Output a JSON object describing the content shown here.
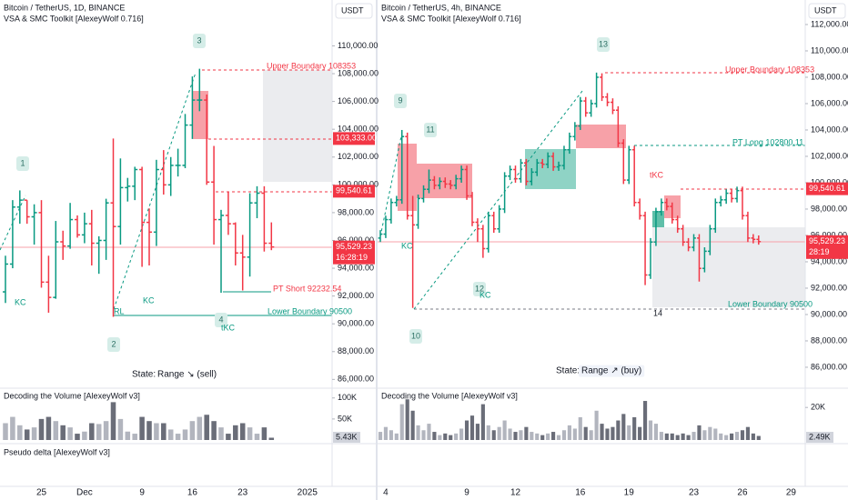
{
  "chart_data": [
    {
      "type": "candlestick",
      "title": "Bitcoin / TetherUS, 1D, BINANCE",
      "subtitle": "VSA & SMC Toolkit [AlexeyWolf 0.716]",
      "currency": "USDT",
      "up_color": "#089981",
      "down_color": "#f23645",
      "categories": [
        null,
        null,
        null,
        null,
        null,
        "25",
        null,
        null,
        null,
        null,
        null,
        "Dec",
        null,
        null,
        null,
        null,
        null,
        null,
        null,
        "9",
        null,
        null,
        null,
        null,
        null,
        null,
        "16",
        null,
        null,
        null,
        null,
        null,
        null,
        "23",
        null,
        null,
        null,
        null,
        null,
        null,
        null,
        null,
        "2025"
      ],
      "open": [
        92300,
        94300,
        98400,
        98900,
        97700,
        98000,
        93000,
        91900,
        95900,
        95600,
        97500,
        96400,
        97200,
        95800,
        96000,
        98700,
        97000,
        99800,
        99900,
        101100,
        97300,
        96600,
        101100,
        100000,
        101400,
        101400,
        104300,
        106100,
        106100,
        100200,
        97500,
        97800,
        97200,
        95100,
        94800,
        98700,
        99400,
        95800,
        null,
        null,
        null,
        null,
        null
      ],
      "high": [
        94900,
        98900,
        99600,
        98900,
        98600,
        98900,
        94900,
        97400,
        96700,
        98700,
        97800,
        98000,
        98200,
        96300,
        99000,
        103333,
        101900,
        100500,
        101300,
        101300,
        98300,
        101800,
        102500,
        102000,
        102600,
        105100,
        107800,
        108353,
        106500,
        102800,
        98200,
        99500,
        97300,
        96400,
        99400,
        99900,
        99900,
        97300,
        null,
        null,
        null,
        null,
        null
      ],
      "low": [
        91500,
        94000,
        97200,
        97200,
        95700,
        92600,
        90800,
        91800,
        94600,
        95400,
        96200,
        95800,
        94200,
        93600,
        94600,
        90500,
        95700,
        98800,
        98900,
        94100,
        94200,
        95600,
        99300,
        99200,
        100600,
        101200,
        103300,
        105300,
        100000,
        95700,
        92232,
        96400,
        94200,
        92400,
        93400,
        97600,
        95200,
        95300,
        null,
        null,
        null,
        null,
        null
      ],
      "close": [
        94300,
        98400,
        98900,
        97700,
        98000,
        93000,
        91900,
        95900,
        95600,
        97500,
        96400,
        97200,
        95800,
        96000,
        98700,
        97000,
        99800,
        99900,
        101100,
        97300,
        96600,
        101100,
        100000,
        101400,
        101400,
        104300,
        106100,
        106100,
        100200,
        97500,
        97800,
        97200,
        95100,
        94800,
        98700,
        99400,
        95800,
        95529.23,
        null,
        null,
        null,
        null,
        null
      ],
      "ylim": [
        85500,
        113300
      ],
      "yticks": [
        {
          "value": 86000,
          "label": "86,000.00"
        },
        {
          "value": 88000,
          "label": "88,000.00"
        },
        {
          "value": 90000,
          "label": "90,000.00"
        },
        {
          "value": 92000,
          "label": "92,000.00"
        },
        {
          "value": 94000,
          "label": "94,000.00"
        },
        {
          "value": 96000,
          "label": "96,000.00"
        },
        {
          "value": 98000,
          "label": "98,000.00"
        },
        {
          "value": 100000,
          "label": "100,000.00"
        },
        {
          "value": 102000,
          "label": "102,000.00"
        },
        {
          "value": 104000,
          "label": "104,000.00"
        },
        {
          "value": 106000,
          "label": "106,000.00"
        },
        {
          "value": 108000,
          "label": "108,000.00"
        },
        {
          "value": 110000,
          "label": "110,000.00"
        }
      ],
      "price_labels": [
        {
          "value": 103333,
          "label": "103,333.00"
        },
        {
          "value": 99540.61,
          "label": "99,540.61"
        },
        {
          "value": 95529.23,
          "label": "95,529.23",
          "sub": "16:28:19"
        }
      ],
      "annotations": [
        "Upper Boundary 108353",
        "PT Short 92232.54",
        "Lower Boundary 90500",
        "1",
        "2",
        "3",
        "4",
        "KC",
        "KC",
        "tKC",
        "RL"
      ],
      "state_label": "State:",
      "state_value": "Range ↘ (sell)",
      "volume": {
        "title": "Decoding the Volume [AlexeyWolf v3]",
        "ylim": [
          0,
          120000
        ],
        "yticks": [
          {
            "value": 100000,
            "label": "100K"
          },
          {
            "value": 50000,
            "label": "50K"
          }
        ],
        "last_label": "5.43K",
        "values": [
          40000,
          55000,
          35000,
          25000,
          30000,
          50000,
          55000,
          45000,
          35000,
          30000,
          15000,
          20000,
          40000,
          38000,
          45000,
          90000,
          50000,
          20000,
          15000,
          55000,
          45000,
          40000,
          40000,
          25000,
          15000,
          25000,
          45000,
          55000,
          60000,
          45000,
          30000,
          15000,
          35000,
          40000,
          30000,
          15000,
          30000,
          5430,
          null,
          null,
          null,
          null,
          null
        ]
      },
      "delta_title": "Pseudo delta [AlexeyWolf v3]"
    },
    {
      "type": "candlestick",
      "title": "Bitcoin / TetherUS, 4h, BINANCE",
      "subtitle": "VSA & SMC Toolkit [AlexeyWolf 0.716]",
      "currency": "USDT",
      "up_color": "#089981",
      "down_color": "#f23645",
      "categories": [
        null,
        "4",
        null,
        null,
        null,
        null,
        null,
        null,
        null,
        null,
        null,
        null,
        null,
        null,
        null,
        null,
        "9",
        null,
        null,
        null,
        null,
        null,
        null,
        null,
        null,
        "12",
        null,
        null,
        null,
        null,
        null,
        null,
        null,
        null,
        null,
        null,
        null,
        "16",
        null,
        null,
        null,
        null,
        null,
        null,
        null,
        null,
        "19",
        null,
        null,
        null,
        null,
        null,
        null,
        null,
        null,
        null,
        null,
        null,
        "23",
        null,
        null,
        null,
        null,
        null,
        null,
        null,
        null,
        "26",
        null,
        null,
        null,
        null,
        null,
        null,
        null,
        null,
        "29"
      ],
      "open": [
        95800,
        96100,
        97200,
        98500,
        98700,
        103500,
        97500,
        96800,
        98800,
        99500,
        100200,
        99800,
        100100,
        99900,
        99800,
        100300,
        101000,
        99000,
        97000,
        96500,
        95000,
        97500,
        96500,
        98000,
        100500,
        101000,
        100300,
        101500,
        100100,
        100800,
        101500,
        101400,
        102000,
        101200,
        101300,
        102500,
        103500,
        104300,
        106200,
        105300,
        106000,
        108000,
        106500,
        106100,
        105500,
        103000,
        100200,
        102500,
        98500,
        97500,
        93000,
        95500,
        97800,
        98500,
        98200,
        97200,
        96500,
        95500,
        95100,
        95800,
        93500,
        94800,
        96500,
        98500,
        98700,
        99200,
        98800,
        99400,
        97500,
        95800,
        95700,
        null,
        null,
        null,
        null,
        null,
        null
      ],
      "high": [
        96400,
        97500,
        98800,
        99000,
        104000,
        103800,
        99000,
        99100,
        99800,
        101000,
        100500,
        100400,
        100400,
        100200,
        100600,
        101300,
        101300,
        99300,
        97300,
        96800,
        97800,
        97800,
        98300,
        100800,
        101300,
        101300,
        101800,
        101800,
        101100,
        101800,
        101800,
        102300,
        102300,
        101600,
        102800,
        103800,
        104600,
        106500,
        106500,
        106300,
        108353,
        108300,
        106800,
        106400,
        105800,
        103300,
        102800,
        102800,
        98800,
        97800,
        95800,
        98100,
        98800,
        98800,
        98500,
        97500,
        96800,
        95800,
        96100,
        96100,
        95100,
        96800,
        98800,
        99000,
        99500,
        99500,
        99700,
        99700,
        97800,
        96100,
        96000,
        null,
        null,
        null,
        null,
        null,
        null
      ],
      "low": [
        95500,
        95800,
        96900,
        98200,
        98400,
        97200,
        90500,
        96500,
        98500,
        99200,
        99500,
        99500,
        99600,
        99500,
        99500,
        100000,
        98700,
        96700,
        95500,
        94300,
        94700,
        96200,
        96200,
        97700,
        100200,
        100000,
        100000,
        99800,
        99800,
        100500,
        101100,
        101100,
        100900,
        100900,
        101000,
        102200,
        103200,
        104000,
        105000,
        105000,
        105700,
        106200,
        105800,
        105200,
        102700,
        99900,
        99900,
        98200,
        97200,
        92232,
        92700,
        95200,
        97500,
        97900,
        96900,
        96200,
        95200,
        94800,
        94800,
        92500,
        93200,
        94500,
        96200,
        98200,
        98400,
        98500,
        98500,
        97200,
        95500,
        95400,
        95300,
        null,
        null,
        null,
        null,
        null,
        null
      ],
      "close": [
        96100,
        97200,
        98500,
        98700,
        103500,
        97500,
        96800,
        98800,
        99500,
        100200,
        99800,
        100100,
        99900,
        99800,
        100300,
        101000,
        99000,
        97000,
        96500,
        95000,
        97500,
        96500,
        98000,
        100500,
        101000,
        100300,
        101500,
        100100,
        100800,
        101500,
        101400,
        102000,
        101200,
        101300,
        102500,
        103500,
        104300,
        106200,
        105300,
        106000,
        108000,
        106500,
        106100,
        105500,
        103000,
        100200,
        102500,
        98500,
        97500,
        93000,
        95500,
        97800,
        98500,
        98200,
        97200,
        96500,
        95500,
        95100,
        95800,
        93500,
        94800,
        96500,
        98500,
        98700,
        99200,
        98800,
        99400,
        97500,
        95800,
        95700,
        95529.23,
        null,
        null,
        null,
        null,
        null,
        null
      ],
      "ylim": [
        84550,
        113860
      ],
      "yticks": [
        {
          "value": 86000,
          "label": "86,000.00"
        },
        {
          "value": 88000,
          "label": "88,000.00"
        },
        {
          "value": 90000,
          "label": "90,000.00"
        },
        {
          "value": 92000,
          "label": "92,000.00"
        },
        {
          "value": 94000,
          "label": "94,000.00"
        },
        {
          "value": 96000,
          "label": "96,000.00"
        },
        {
          "value": 98000,
          "label": "98,000.00"
        },
        {
          "value": 100000,
          "label": "100,000.00"
        },
        {
          "value": 102000,
          "label": "102,000.00"
        },
        {
          "value": 104000,
          "label": "104,000.00"
        },
        {
          "value": 106000,
          "label": "106,000.00"
        },
        {
          "value": 108000,
          "label": "108,000.00"
        },
        {
          "value": 110000,
          "label": "110,000.00"
        },
        {
          "value": 112000,
          "label": "112,000.00"
        }
      ],
      "price_labels": [
        {
          "value": 99540.61,
          "label": "99,540.61"
        },
        {
          "value": 95529.23,
          "label": "95,529.23",
          "sub": "28:19"
        }
      ],
      "annotations": [
        "Upper Boundary 108353",
        "PT Long 102800.11",
        "Lower Boundary 90500",
        "9",
        "10",
        "11",
        "12",
        "13",
        "14",
        "KC",
        "KC",
        "tKC"
      ],
      "state_label": "State:",
      "state_value": "Range ↗ (buy)",
      "volume": {
        "title": "Decoding the Volume [AlexeyWolf v3]",
        "ylim": [
          0,
          31000
        ],
        "yticks": [
          {
            "value": 20000,
            "label": "20K"
          }
        ],
        "last_label": "2.49K",
        "values": [
          5000,
          8000,
          6000,
          4000,
          22000,
          25000,
          18000,
          9000,
          6000,
          10000,
          5000,
          3000,
          4000,
          3000,
          4000,
          7000,
          12000,
          15000,
          10000,
          22000,
          9000,
          6000,
          8000,
          12000,
          7000,
          5000,
          6000,
          8000,
          5000,
          4000,
          3000,
          4000,
          5000,
          3000,
          6000,
          9000,
          7000,
          14000,
          8000,
          6000,
          18000,
          10000,
          7000,
          8000,
          12000,
          16000,
          9000,
          14000,
          8000,
          24000,
          12000,
          10000,
          5000,
          4000,
          4000,
          3000,
          4000,
          3000,
          5000,
          9000,
          6000,
          8000,
          7000,
          4000,
          3000,
          4000,
          5000,
          6000,
          8000,
          4000,
          2490,
          null,
          null,
          null,
          null,
          null,
          null
        ]
      }
    }
  ]
}
